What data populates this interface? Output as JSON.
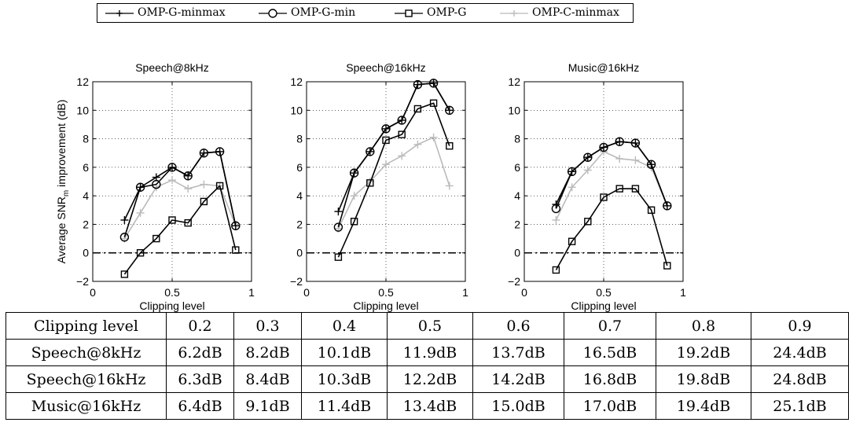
{
  "legend": {
    "items": [
      {
        "label": "OMP-G-minmax",
        "color": "#000000",
        "marker": "plus"
      },
      {
        "label": "OMP-G-min",
        "color": "#000000",
        "marker": "circle-plus"
      },
      {
        "label": "OMP-G",
        "color": "#000000",
        "marker": "square"
      },
      {
        "label": "OMP-C-minmax",
        "color": "#bbbbbb",
        "marker": "plus"
      }
    ]
  },
  "chart_data": [
    {
      "type": "line",
      "title": "Speech@8kHz",
      "xlabel": "Clipping level",
      "ylabel": "Average SNR_m improvement (dB)",
      "xlim": [
        0,
        1
      ],
      "ylim": [
        -2,
        12
      ],
      "xticks": [
        0,
        0.5,
        1
      ],
      "xtick_labels": [
        "0",
        "0.5",
        "1"
      ],
      "yticks": [
        -2,
        0,
        2,
        4,
        6,
        8,
        10,
        12
      ],
      "ytick_labels": [
        "−2",
        "0",
        "2",
        "4",
        "6",
        "8",
        "10",
        "12"
      ],
      "grid": true,
      "x": [
        0.2,
        0.3,
        0.4,
        0.5,
        0.6,
        0.7,
        0.8,
        0.9
      ],
      "series": [
        {
          "name": "OMP-G-minmax",
          "values": [
            2.3,
            4.6,
            5.3,
            6.0,
            5.4,
            7.0,
            7.1,
            1.9
          ]
        },
        {
          "name": "OMP-G-min",
          "values": [
            1.1,
            4.6,
            4.8,
            6.0,
            5.4,
            7.0,
            7.1,
            1.9
          ]
        },
        {
          "name": "OMP-G",
          "values": [
            -1.5,
            0.0,
            1.0,
            2.3,
            2.1,
            3.6,
            4.7,
            0.2
          ]
        },
        {
          "name": "OMP-C-minmax",
          "values": [
            1.0,
            2.8,
            4.6,
            5.1,
            4.5,
            4.8,
            4.7,
            1.9
          ]
        }
      ]
    },
    {
      "type": "line",
      "title": "Speech@16kHz",
      "xlabel": "Clipping level",
      "ylabel": "",
      "xlim": [
        0,
        1
      ],
      "ylim": [
        -2,
        12
      ],
      "xticks": [
        0,
        0.5,
        1
      ],
      "xtick_labels": [
        "0",
        "0.5",
        "1"
      ],
      "yticks": [
        -2,
        0,
        2,
        4,
        6,
        8,
        10,
        12
      ],
      "ytick_labels": [
        "−2",
        "0",
        "2",
        "4",
        "6",
        "8",
        "10",
        "12"
      ],
      "grid": true,
      "x": [
        0.2,
        0.3,
        0.4,
        0.5,
        0.6,
        0.7,
        0.8,
        0.9
      ],
      "series": [
        {
          "name": "OMP-G-minmax",
          "values": [
            2.9,
            5.6,
            7.1,
            8.7,
            9.3,
            11.8,
            11.9,
            10.0
          ]
        },
        {
          "name": "OMP-G-min",
          "values": [
            1.8,
            5.6,
            7.1,
            8.7,
            9.3,
            11.8,
            11.9,
            10.0
          ]
        },
        {
          "name": "OMP-G",
          "values": [
            -0.3,
            2.2,
            4.9,
            7.9,
            8.3,
            10.1,
            10.5,
            7.5
          ]
        },
        {
          "name": "OMP-C-minmax",
          "values": [
            1.7,
            4.0,
            5.0,
            6.2,
            6.8,
            7.6,
            8.1,
            4.7
          ]
        }
      ]
    },
    {
      "type": "line",
      "title": "Music@16kHz",
      "xlabel": "Clipping level",
      "ylabel": "",
      "xlim": [
        0,
        1
      ],
      "ylim": [
        -2,
        12
      ],
      "xticks": [
        0,
        0.5,
        1
      ],
      "xtick_labels": [
        "0",
        "0.5",
        "1"
      ],
      "yticks": [
        -2,
        0,
        2,
        4,
        6,
        8,
        10,
        12
      ],
      "ytick_labels": [
        "−2",
        "0",
        "2",
        "4",
        "6",
        "8",
        "10",
        "12"
      ],
      "grid": true,
      "x": [
        0.2,
        0.3,
        0.4,
        0.5,
        0.6,
        0.7,
        0.8,
        0.9
      ],
      "series": [
        {
          "name": "OMP-G-minmax",
          "values": [
            3.4,
            5.7,
            6.7,
            7.4,
            7.8,
            7.7,
            6.2,
            3.3
          ]
        },
        {
          "name": "OMP-G-min",
          "values": [
            3.1,
            5.7,
            6.7,
            7.4,
            7.8,
            7.7,
            6.2,
            3.3
          ]
        },
        {
          "name": "OMP-G",
          "values": [
            -1.2,
            0.8,
            2.2,
            3.9,
            4.5,
            4.5,
            3.0,
            -0.9
          ]
        },
        {
          "name": "OMP-C-minmax",
          "values": [
            2.3,
            4.6,
            5.8,
            7.1,
            6.6,
            6.5,
            6.0,
            3.3
          ]
        }
      ]
    }
  ],
  "table": {
    "header": [
      "Clipping level",
      "0.2",
      "0.3",
      "0.4",
      "0.5",
      "0.6",
      "0.7",
      "0.8",
      "0.9"
    ],
    "rows": [
      [
        "Speech@8kHz",
        "6.2dB",
        "8.2dB",
        "10.1dB",
        "11.9dB",
        "13.7dB",
        "16.5dB",
        "19.2dB",
        "24.4dB"
      ],
      [
        "Speech@16kHz",
        "6.3dB",
        "8.4dB",
        "10.3dB",
        "12.2dB",
        "14.2dB",
        "16.8dB",
        "19.8dB",
        "24.8dB"
      ],
      [
        "Music@16kHz",
        "6.4dB",
        "9.1dB",
        "11.4dB",
        "13.4dB",
        "15.0dB",
        "17.0dB",
        "19.4dB",
        "25.1dB"
      ]
    ]
  }
}
